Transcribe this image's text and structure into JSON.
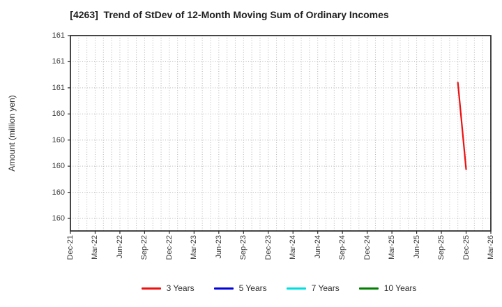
{
  "title": "[4263]  Trend of StDev of 12-Month Moving Sum of Ordinary Incomes",
  "y_axis_label": "Amount (million yen)",
  "legend": [
    {
      "label": "3 Years",
      "color": "#ee1111"
    },
    {
      "label": "5 Years",
      "color": "#0202dd"
    },
    {
      "label": "7 Years",
      "color": "#00dfdf"
    },
    {
      "label": "10 Years",
      "color": "#007f00"
    }
  ],
  "chart_data": {
    "type": "line",
    "title": "[4263]  Trend of StDev of 12-Month Moving Sum of Ordinary Incomes",
    "ylabel": "Amount (million yen)",
    "grid": true,
    "legend_position": "bottom",
    "x_tick_labels": [
      "Dec-21",
      "Mar-22",
      "Jun-22",
      "Sep-22",
      "Dec-22",
      "Mar-23",
      "Jun-23",
      "Sep-23",
      "Dec-23",
      "Mar-24",
      "Jun-24",
      "Sep-24",
      "Dec-24",
      "Mar-25",
      "Jun-25",
      "Sep-25",
      "Dec-25",
      "Mar-26"
    ],
    "x_tick_step_months": 3,
    "x_month_count": 51,
    "x_range": [
      "Dec-21",
      "Mar-26"
    ],
    "minor_grid_every_month": true,
    "ylim": [
      159.38,
      161.25
    ],
    "y_tick_values": [
      161.25,
      161.0,
      160.75,
      160.5,
      160.25,
      160.0,
      159.75,
      159.5
    ],
    "y_tick_labels": [
      "161",
      "161",
      "161",
      "160",
      "160",
      "160",
      "160",
      "160"
    ],
    "series": [
      {
        "name": "3 Years",
        "color": "#ee1111",
        "points": [
          {
            "date": "Nov-25",
            "month_index": 47,
            "value": 160.8
          },
          {
            "date": "Dec-25",
            "month_index": 48,
            "value": 159.97
          }
        ]
      },
      {
        "name": "5 Years",
        "color": "#0202dd",
        "points": []
      },
      {
        "name": "7 Years",
        "color": "#00dfdf",
        "points": []
      },
      {
        "name": "10 Years",
        "color": "#007f00",
        "points": []
      }
    ]
  }
}
